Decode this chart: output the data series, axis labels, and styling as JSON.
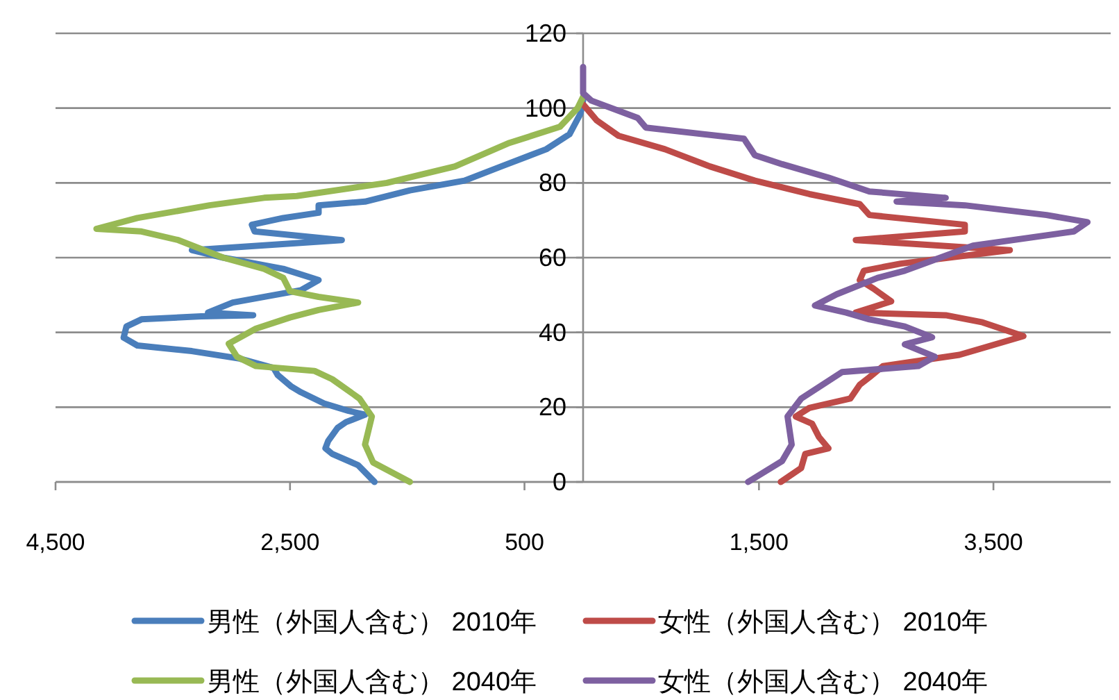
{
  "chart_data": {
    "type": "line",
    "xlim": [
      -4500,
      4500
    ],
    "ylim": [
      0,
      120
    ],
    "xticks": [
      {
        "value": -4500,
        "label": "4,500"
      },
      {
        "value": -2500,
        "label": "2,500"
      },
      {
        "value": -500,
        "label": "500"
      },
      {
        "value": 1500,
        "label": "1,500"
      },
      {
        "value": 3500,
        "label": "3,500"
      }
    ],
    "yticks": [
      0,
      20,
      40,
      60,
      80,
      100,
      120
    ],
    "grid": "y",
    "legend": "bottom",
    "marker": "none",
    "line_style": "solid",
    "series": [
      {
        "name": "男性（外国人含む） 2010年",
        "color": "#4a7ebb",
        "x": [
          -1779,
          -1919,
          -2140,
          -2198,
          -2174,
          -2093,
          -2023,
          -1860,
          -2000,
          -2209,
          -2407,
          -2488,
          -2605,
          -2640,
          -2930,
          -3337,
          -3802,
          -3919,
          -3895,
          -3767,
          -3256,
          -2814,
          -3200,
          -2988,
          -2407,
          -2256,
          -2558,
          -3070,
          -3337,
          -2058,
          -2802,
          -2826,
          -2558,
          -2256,
          -2256,
          -1860,
          -1477,
          -1012,
          -698,
          -314,
          -116,
          -23,
          0
        ],
        "values": [
          0,
          4.5,
          7.5,
          9,
          11,
          14.5,
          16,
          18,
          19,
          21,
          24,
          25.5,
          28.6,
          30.5,
          33,
          35,
          36.5,
          38.6,
          41.6,
          43.5,
          44.3,
          44.6,
          45.3,
          48,
          51.3,
          54,
          57,
          60,
          62,
          64.7,
          67,
          68.8,
          70.6,
          72,
          74,
          75,
          78,
          80.6,
          84.4,
          89,
          93,
          98.5,
          102
        ]
      },
      {
        "name": "女性（外国人含む） 2010年",
        "color": "#be4b48",
        "x": [
          1686,
          1860,
          1895,
          2093,
          2012,
          1953,
          1814,
          1930,
          2279,
          2360,
          2442,
          2558,
          3209,
          3756,
          3407,
          3093,
          2326,
          2628,
          2477,
          2360,
          2395,
          2709,
          3640,
          2326,
          3256,
          3256,
          2442,
          2360,
          1930,
          1465,
          1081,
          698,
          302,
          116,
          0
        ],
        "values": [
          0,
          3.7,
          7.5,
          9,
          12,
          15.6,
          17.5,
          19.8,
          22.3,
          26,
          28,
          31,
          34,
          39,
          42.7,
          44.6,
          45.3,
          48.3,
          51.7,
          54,
          56.5,
          58.4,
          62,
          64.7,
          67,
          68.8,
          71.4,
          74.3,
          77,
          80.6,
          84.4,
          89,
          92.6,
          96.7,
          101
        ]
      },
      {
        "name": "男性（外国人含む） 2040年",
        "color": "#98b954",
        "x": [
          -1477,
          -1791,
          -1860,
          -1802,
          -1907,
          -2140,
          -2291,
          -2791,
          -2953,
          -3023,
          -2791,
          -2500,
          -2256,
          -1919,
          -2256,
          -2500,
          -2558,
          -2721,
          -3070,
          -3453,
          -3767,
          -4151,
          -3802,
          -3186,
          -2721,
          -2442,
          -1674,
          -1093,
          -628,
          -198,
          -47,
          0
        ],
        "values": [
          0,
          5.2,
          10,
          17.5,
          22.3,
          27.5,
          29.7,
          31,
          33.5,
          37,
          41,
          44,
          46,
          48,
          49.5,
          51,
          54.6,
          57,
          60,
          64.7,
          67,
          67.7,
          70.6,
          74,
          76,
          76.5,
          80,
          84.4,
          90.7,
          95,
          100,
          103
        ]
      },
      {
        "name": "女性（外国人含む） 2040年",
        "color": "#7d60a0",
        "x": [
          1407,
          1698,
          1779,
          1744,
          1860,
          2209,
          2860,
          3000,
          2744,
          2977,
          2744,
          2442,
          2244,
          1977,
          2163,
          2512,
          2744,
          3326,
          4186,
          4302,
          3953,
          3256,
          2674,
          3093,
          2442,
          2093,
          1698,
          1465,
          1372,
          535,
          465,
          70,
          0,
          0
        ],
        "values": [
          0,
          5.6,
          10,
          17.5,
          22.3,
          29.4,
          31,
          33.5,
          36.8,
          38.7,
          41.6,
          43.5,
          45.3,
          47.2,
          50.2,
          54.6,
          56.5,
          63.2,
          67,
          69.5,
          71.4,
          74,
          75,
          76,
          77.7,
          81.4,
          85,
          87.4,
          91.8,
          94.8,
          97.4,
          102,
          104,
          111
        ]
      }
    ]
  }
}
